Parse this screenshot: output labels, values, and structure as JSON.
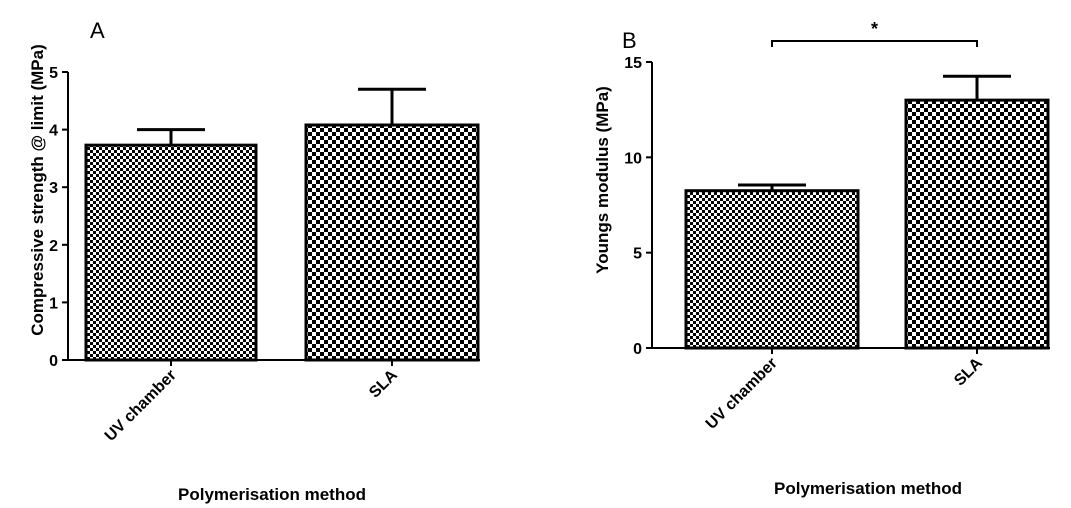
{
  "chart_data": [
    {
      "type": "bar",
      "panel_label": "A",
      "categories": [
        "UV chamber",
        "SLA"
      ],
      "values": [
        3.73,
        4.08
      ],
      "errors": [
        0.27,
        0.62
      ],
      "ylabel": "Compressive strength @ limit (MPa)",
      "xlabel": "Polymerisation method",
      "ylim": [
        0,
        5
      ],
      "yticks": [
        0,
        1,
        2,
        3,
        4,
        5
      ],
      "patterns": [
        "fine-check",
        "coarse-check"
      ],
      "significance": null
    },
    {
      "type": "bar",
      "panel_label": "B",
      "categories": [
        "UV chamber",
        "SLA"
      ],
      "values": [
        8.25,
        13.0
      ],
      "errors": [
        0.3,
        1.25
      ],
      "ylabel": "Youngs modulus (MPa)",
      "xlabel": "Polymerisation method",
      "ylim": [
        0,
        15
      ],
      "yticks": [
        0,
        5,
        10,
        15
      ],
      "patterns": [
        "fine-check",
        "coarse-check"
      ],
      "significance": {
        "pair": [
          0,
          1
        ],
        "label": "*"
      }
    }
  ]
}
